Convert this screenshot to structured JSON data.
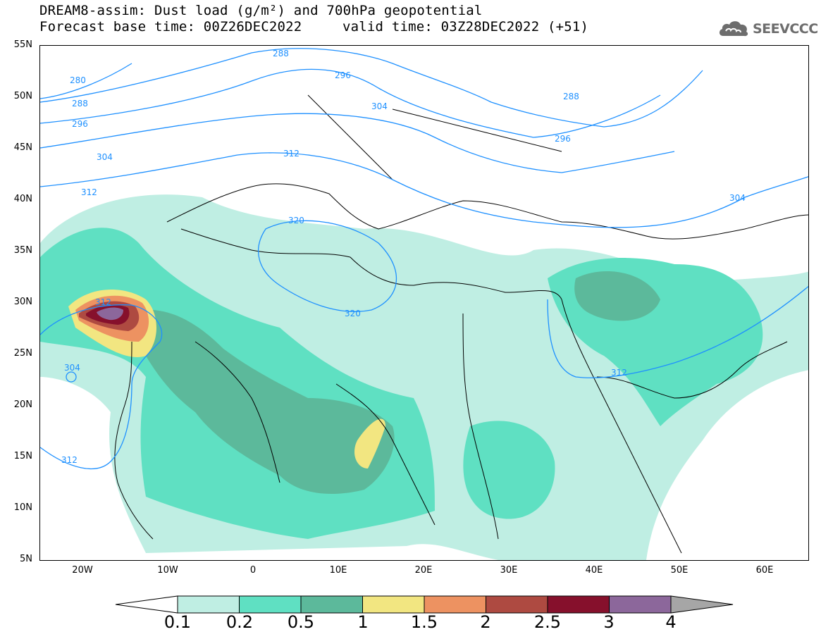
{
  "title": {
    "line1": "DREAM8-assim: Dust load (g/m²) and 700hPa geopotential",
    "line2_left": "Forecast base time: 00Z26DEC2022",
    "line2_right": "valid time: 03Z28DEC2022 (+51)"
  },
  "logo": {
    "text": "SEEVCCC",
    "icon": "cloud-icon"
  },
  "axes": {
    "lat_labels": [
      "55N",
      "50N",
      "45N",
      "40N",
      "35N",
      "30N",
      "25N",
      "20N",
      "15N",
      "10N",
      "5N"
    ],
    "lon_labels": [
      "20W",
      "10W",
      "0",
      "10E",
      "20E",
      "30E",
      "40E",
      "50E",
      "60E"
    ]
  },
  "contour_labels": [
    "288",
    "280",
    "296",
    "288",
    "304",
    "296",
    "304",
    "312",
    "296",
    "288",
    "312",
    "304",
    "320",
    "312",
    "320",
    "304",
    "312",
    "312"
  ],
  "colorbar": {
    "labels": [
      "0.1",
      "0.2",
      "0.5",
      "1",
      "1.5",
      "2",
      "2.5",
      "3",
      "4"
    ],
    "colors": [
      "#bfeee3",
      "#5fe0c2",
      "#5cb99b",
      "#f2e681",
      "#ed9261",
      "#ae4a41",
      "#86102c",
      "#8c679b",
      "#a6a6a6"
    ]
  },
  "colors": {
    "contour": "#1e90ff",
    "coast": "#000000"
  }
}
